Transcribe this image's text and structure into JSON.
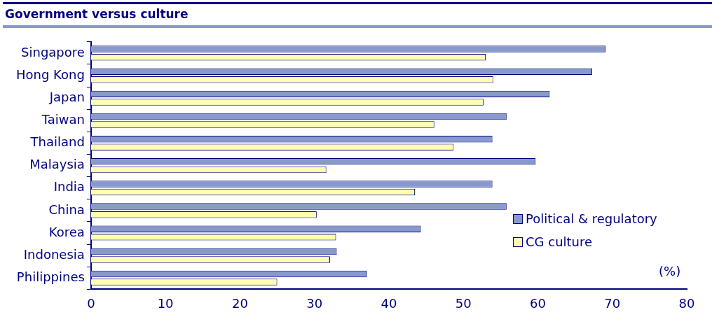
{
  "chart_data": {
    "type": "bar",
    "orientation": "horizontal",
    "title": "Government versus culture",
    "categories": [
      "Singapore",
      "Hong Kong",
      "Japan",
      "Taiwan",
      "Thailand",
      "Malaysia",
      "India",
      "China",
      "Korea",
      "Indonesia",
      "Philippines"
    ],
    "series": [
      {
        "name": "Political & regulatory",
        "color": "#8899cc",
        "values": [
          69.1,
          67.3,
          61.6,
          55.8,
          53.9,
          59.7,
          53.9,
          55.8,
          44.3,
          33.0,
          37.0
        ]
      },
      {
        "name": "CG culture",
        "color": "#ffffb3",
        "values": [
          53.0,
          54.0,
          52.7,
          46.1,
          48.7,
          31.6,
          43.5,
          30.3,
          32.9,
          32.1,
          25.0
        ]
      }
    ],
    "xlim": [
      0,
      80
    ],
    "xticks": [
      0,
      10,
      20,
      30,
      40,
      50,
      60,
      70,
      80
    ],
    "xlabel": "(%)",
    "grid": false,
    "legend": "bottom right"
  }
}
